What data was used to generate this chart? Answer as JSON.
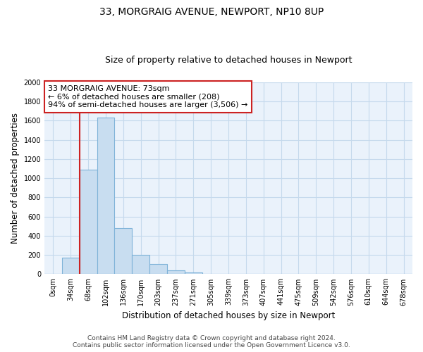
{
  "title": "33, MORGRAIG AVENUE, NEWPORT, NP10 8UP",
  "subtitle": "Size of property relative to detached houses in Newport",
  "xlabel": "Distribution of detached houses by size in Newport",
  "ylabel": "Number of detached properties",
  "bar_labels": [
    "0sqm",
    "34sqm",
    "68sqm",
    "102sqm",
    "136sqm",
    "170sqm",
    "203sqm",
    "237sqm",
    "271sqm",
    "305sqm",
    "339sqm",
    "373sqm",
    "407sqm",
    "441sqm",
    "475sqm",
    "509sqm",
    "542sqm",
    "576sqm",
    "610sqm",
    "644sqm",
    "678sqm"
  ],
  "bar_heights": [
    0,
    170,
    1090,
    1630,
    480,
    200,
    105,
    40,
    20,
    0,
    0,
    0,
    0,
    0,
    0,
    0,
    0,
    0,
    0,
    0,
    0
  ],
  "bar_color": "#c8ddf0",
  "bar_edge_color": "#7fb3d8",
  "highlight_line_color": "#cc2222",
  "annotation_text_line1": "33 MORGRAIG AVENUE: 73sqm",
  "annotation_text_line2": "← 6% of detached houses are smaller (208)",
  "annotation_text_line3": "94% of semi-detached houses are larger (3,506) →",
  "annotation_box_color": "white",
  "annotation_box_edge_color": "#cc2222",
  "ylim": [
    0,
    2000
  ],
  "yticks": [
    0,
    200,
    400,
    600,
    800,
    1000,
    1200,
    1400,
    1600,
    1800,
    2000
  ],
  "footer_line1": "Contains HM Land Registry data © Crown copyright and database right 2024.",
  "footer_line2": "Contains public sector information licensed under the Open Government Licence v3.0.",
  "bg_color": "#ffffff",
  "plot_bg_color": "#eaf2fb",
  "grid_color": "#c5d9ec",
  "title_fontsize": 10,
  "subtitle_fontsize": 9,
  "label_fontsize": 8.5,
  "tick_fontsize": 7,
  "annot_fontsize": 8,
  "footer_fontsize": 6.5
}
